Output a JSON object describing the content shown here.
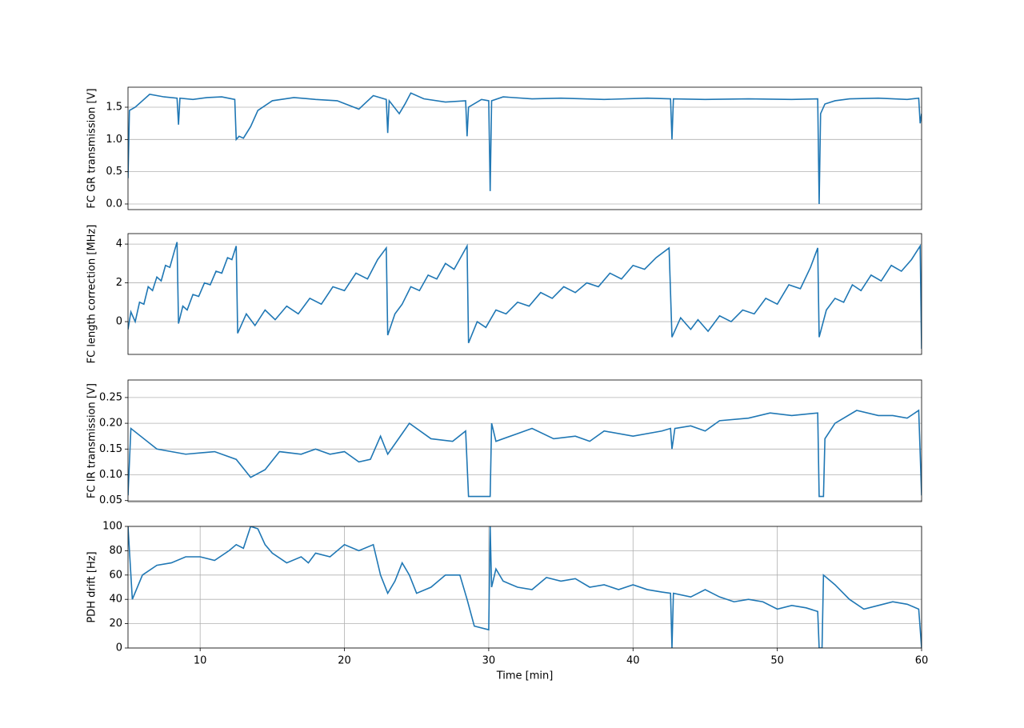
{
  "chart_data": [
    {
      "type": "line",
      "ylabel": "FC GR transmission [V]",
      "color": "#1f77b4",
      "grid": "y",
      "xlim": [
        5,
        60
      ],
      "ylim": [
        -0.087,
        1.81
      ],
      "yticks": [
        {
          "value": 0,
          "label": "0.0"
        },
        0.5,
        {
          "value": 1,
          "label": "1.0"
        },
        1.5
      ],
      "x": [
        5.0,
        5.1,
        5.5,
        6.0,
        6.5,
        7.5,
        8.4,
        8.5,
        8.6,
        9.5,
        10.5,
        11.5,
        12.4,
        12.5,
        12.7,
        13.0,
        13.5,
        14.0,
        15.0,
        16.5,
        18.0,
        19.5,
        21.0,
        22.0,
        22.9,
        23.0,
        23.1,
        23.8,
        24.2,
        24.6,
        25.5,
        27.0,
        28.4,
        28.5,
        28.6,
        29.5,
        30.0,
        30.1,
        30.2,
        31.0,
        33.0,
        35.0,
        38.0,
        41.0,
        42.6,
        42.7,
        42.8,
        45.0,
        48.0,
        51.0,
        52.8,
        52.9,
        53.0,
        53.3,
        54.0,
        55.0,
        57.0,
        59.0,
        59.8,
        59.9,
        60.0
      ],
      "values": [
        0.4,
        1.45,
        1.5,
        1.6,
        1.7,
        1.66,
        1.64,
        1.23,
        1.64,
        1.62,
        1.65,
        1.66,
        1.62,
        1.0,
        1.05,
        1.02,
        1.2,
        1.45,
        1.6,
        1.65,
        1.62,
        1.6,
        1.47,
        1.68,
        1.62,
        1.1,
        1.6,
        1.4,
        1.55,
        1.72,
        1.63,
        1.58,
        1.6,
        1.05,
        1.5,
        1.62,
        1.6,
        0.2,
        1.6,
        1.66,
        1.63,
        1.64,
        1.62,
        1.64,
        1.63,
        1.0,
        1.63,
        1.62,
        1.63,
        1.62,
        1.63,
        0.0,
        1.4,
        1.55,
        1.6,
        1.63,
        1.64,
        1.62,
        1.64,
        1.25,
        1.4
      ]
    },
    {
      "type": "line",
      "ylabel": "FC length correction [MHz]",
      "color": "#1f77b4",
      "grid": "y",
      "xlim": [
        5,
        60
      ],
      "ylim": [
        -1.69,
        4.54
      ],
      "yticks": [
        0,
        2,
        4
      ],
      "x": [
        5.0,
        5.2,
        5.5,
        5.8,
        6.1,
        6.4,
        6.7,
        7.0,
        7.3,
        7.6,
        7.9,
        8.2,
        8.4,
        8.5,
        8.8,
        9.1,
        9.5,
        9.9,
        10.3,
        10.7,
        11.1,
        11.5,
        11.9,
        12.2,
        12.5,
        12.6,
        13.2,
        13.8,
        14.5,
        15.2,
        16.0,
        16.8,
        17.6,
        18.4,
        19.2,
        20.0,
        20.8,
        21.6,
        22.3,
        22.9,
        23.0,
        23.5,
        24.0,
        24.6,
        25.2,
        25.8,
        26.4,
        27.0,
        27.6,
        28.2,
        28.5,
        28.6,
        29.2,
        29.8,
        30.5,
        31.2,
        32.0,
        32.8,
        33.6,
        34.4,
        35.2,
        36.0,
        36.8,
        37.6,
        38.4,
        39.2,
        40.0,
        40.8,
        41.6,
        42.5,
        42.7,
        43.3,
        44.0,
        44.5,
        45.2,
        46.0,
        46.8,
        47.6,
        48.4,
        49.2,
        50.0,
        50.8,
        51.6,
        52.3,
        52.8,
        52.9,
        53.4,
        54.0,
        54.6,
        55.2,
        55.8,
        56.5,
        57.2,
        57.9,
        58.6,
        59.3,
        59.9,
        60.0
      ],
      "values": [
        -0.4,
        0.5,
        0.0,
        1.0,
        0.9,
        1.8,
        1.6,
        2.3,
        2.1,
        2.9,
        2.8,
        3.6,
        4.1,
        -0.1,
        0.8,
        0.6,
        1.4,
        1.3,
        2.0,
        1.9,
        2.6,
        2.5,
        3.3,
        3.2,
        3.9,
        -0.6,
        0.4,
        -0.2,
        0.6,
        0.1,
        0.8,
        0.4,
        1.2,
        0.9,
        1.8,
        1.6,
        2.5,
        2.2,
        3.2,
        3.8,
        -0.7,
        0.4,
        0.9,
        1.8,
        1.6,
        2.4,
        2.2,
        3.0,
        2.7,
        3.5,
        3.9,
        -1.1,
        0.0,
        -0.3,
        0.6,
        0.4,
        1.0,
        0.8,
        1.5,
        1.2,
        1.8,
        1.5,
        2.0,
        1.8,
        2.5,
        2.2,
        2.9,
        2.7,
        3.3,
        3.8,
        -0.8,
        0.2,
        -0.4,
        0.1,
        -0.5,
        0.3,
        0.0,
        0.6,
        0.4,
        1.2,
        0.9,
        1.9,
        1.7,
        2.8,
        3.8,
        -0.8,
        0.6,
        1.2,
        1.0,
        1.9,
        1.6,
        2.4,
        2.1,
        2.9,
        2.6,
        3.2,
        3.9,
        -1.4
      ]
    },
    {
      "type": "line",
      "ylabel": "FC IR transmission [V]",
      "color": "#1f77b4",
      "grid": "y",
      "xlim": [
        5,
        60
      ],
      "ylim": [
        0.048,
        0.284
      ],
      "yticks": [
        0.05,
        {
          "value": 0.1,
          "label": "0.10"
        },
        0.15,
        {
          "value": 0.2,
          "label": "0.20"
        },
        0.25
      ],
      "x": [
        5.0,
        5.2,
        7.0,
        9.0,
        11.0,
        12.5,
        13.5,
        14.5,
        15.5,
        17.0,
        18.0,
        19.0,
        20.0,
        21.0,
        21.8,
        22.5,
        23.0,
        24.0,
        24.5,
        26.0,
        27.5,
        28.4,
        28.6,
        30.1,
        30.2,
        30.5,
        32.0,
        33.0,
        34.5,
        36.0,
        37.0,
        38.0,
        40.0,
        42.0,
        42.6,
        42.7,
        42.9,
        44.0,
        45.0,
        46.0,
        48.0,
        49.5,
        51.0,
        52.8,
        52.9,
        53.2,
        53.3,
        54.0,
        55.5,
        57.0,
        58.0,
        59.0,
        59.8,
        60.0
      ],
      "values": [
        0.06,
        0.19,
        0.15,
        0.14,
        0.145,
        0.13,
        0.095,
        0.11,
        0.145,
        0.14,
        0.15,
        0.14,
        0.145,
        0.125,
        0.13,
        0.175,
        0.14,
        0.18,
        0.2,
        0.17,
        0.165,
        0.185,
        0.058,
        0.058,
        0.2,
        0.165,
        0.18,
        0.19,
        0.17,
        0.175,
        0.165,
        0.185,
        0.175,
        0.185,
        0.19,
        0.15,
        0.19,
        0.195,
        0.185,
        0.205,
        0.21,
        0.22,
        0.215,
        0.22,
        0.058,
        0.058,
        0.17,
        0.2,
        0.225,
        0.215,
        0.215,
        0.21,
        0.225,
        0.06
      ]
    },
    {
      "type": "line",
      "ylabel": "PDH drift [Hz]",
      "xlabel": "Time [min]",
      "color": "#1f77b4",
      "grid": "both",
      "xlim": [
        5,
        60
      ],
      "ylim": [
        0,
        100
      ],
      "yticks": [
        0,
        20,
        40,
        60,
        80,
        100
      ],
      "xticks": [
        10,
        20,
        30,
        40,
        50,
        60
      ],
      "x": [
        5.0,
        5.3,
        6.0,
        7.0,
        8.0,
        9.0,
        10.0,
        11.0,
        12.0,
        12.5,
        13.0,
        13.5,
        14.0,
        14.5,
        15.0,
        16.0,
        17.0,
        17.5,
        18.0,
        19.0,
        20.0,
        21.0,
        22.0,
        22.5,
        23.0,
        23.5,
        24.0,
        24.5,
        25.0,
        26.0,
        27.0,
        28.0,
        28.5,
        29.0,
        30.0,
        30.1,
        30.2,
        30.5,
        31.0,
        32.0,
        33.0,
        34.0,
        35.0,
        36.0,
        37.0,
        38.0,
        39.0,
        40.0,
        41.0,
        42.0,
        42.6,
        42.7,
        42.8,
        44.0,
        45.0,
        46.0,
        47.0,
        48.0,
        49.0,
        50.0,
        51.0,
        52.0,
        52.8,
        52.9,
        53.1,
        53.2,
        54.0,
        55.0,
        56.0,
        57.0,
        58.0,
        59.0,
        59.8,
        60.0
      ],
      "values": [
        100,
        40,
        60,
        68,
        70,
        75,
        75,
        72,
        80,
        85,
        82,
        100,
        98,
        85,
        78,
        70,
        75,
        70,
        78,
        75,
        85,
        80,
        85,
        60,
        45,
        55,
        70,
        60,
        45,
        50,
        60,
        60,
        40,
        18,
        15,
        100,
        50,
        65,
        55,
        50,
        48,
        58,
        55,
        57,
        50,
        52,
        48,
        52,
        48,
        46,
        45,
        0,
        45,
        42,
        48,
        42,
        38,
        40,
        38,
        32,
        35,
        33,
        30,
        0,
        0,
        60,
        52,
        40,
        32,
        35,
        38,
        36,
        32,
        0
      ]
    }
  ]
}
